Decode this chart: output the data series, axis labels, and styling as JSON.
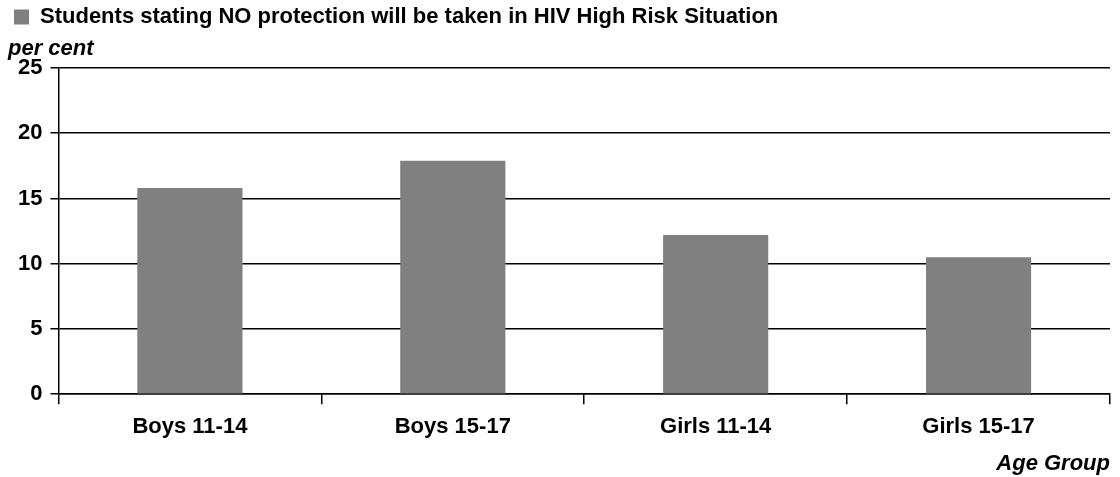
{
  "chart_data": {
    "type": "bar",
    "xlabel": "Age Group",
    "ylabel": "per cent",
    "categories": [
      "Boys 11-14",
      "Boys 15-17",
      "Girls 11-14",
      "Girls 15-17"
    ],
    "series": [
      {
        "name": "Students stating NO protection will be taken in HIV High Risk Situation",
        "color": "#808080",
        "values": [
          15.8,
          17.9,
          12.2,
          10.5
        ]
      }
    ],
    "ylim": [
      0,
      25
    ],
    "yticks": [
      0,
      5,
      10,
      15,
      20,
      25
    ],
    "grid": "y",
    "legend": "top left"
  }
}
